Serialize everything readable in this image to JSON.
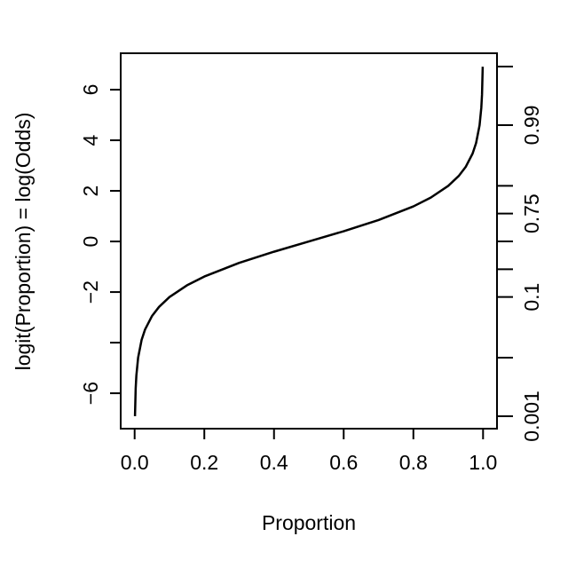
{
  "chart_data": {
    "type": "line",
    "xlabel": "Proportion",
    "ylabel": "logit(Proportion) = log(Odds)",
    "x": [
      0.001,
      0.003,
      0.005,
      0.01,
      0.02,
      0.03,
      0.05,
      0.07,
      0.1,
      0.15,
      0.2,
      0.3,
      0.4,
      0.5,
      0.6,
      0.7,
      0.8,
      0.85,
      0.9,
      0.93,
      0.95,
      0.97,
      0.98,
      0.99,
      0.995,
      0.997,
      0.999
    ],
    "series": [
      {
        "color": "#000000",
        "values": [
          -6.907,
          -5.806,
          -5.293,
          -4.595,
          -3.892,
          -3.476,
          -2.944,
          -2.587,
          -2.197,
          -1.735,
          -1.386,
          -0.847,
          -0.405,
          0,
          0.405,
          0.847,
          1.386,
          1.735,
          2.197,
          2.587,
          2.944,
          3.476,
          3.892,
          4.595,
          5.293,
          5.806,
          6.907
        ]
      }
    ],
    "xlim": [
      -0.04,
      1.04
    ],
    "xticks": [
      {
        "value": 0,
        "label": "0.0"
      },
      0.2,
      0.4,
      0.6,
      0.8,
      {
        "value": 1,
        "label": "1.0"
      }
    ],
    "ylim": [
      -7.4,
      7.44
    ],
    "yticks": [
      {
        "value": -6,
        "label": "−6"
      },
      {
        "value": -4,
        "label": null
      },
      {
        "value": -2,
        "label": "−2"
      },
      0,
      2,
      4,
      6
    ],
    "y2scale": "logit",
    "y2lim": [
      0.000611,
      0.99941
    ],
    "y2ticks": [
      {
        "value": 0.001,
        "label": "0.001"
      },
      {
        "value": 0.01,
        "label": null
      },
      {
        "value": 0.1,
        "label": "0.1"
      },
      {
        "value": 0.25,
        "label": null
      },
      {
        "value": 0.5,
        "label": null
      },
      {
        "value": 0.75,
        "label": "0.75"
      },
      {
        "value": 0.9,
        "label": null
      },
      {
        "value": 0.99,
        "label": "0.99"
      },
      {
        "value": 0.999,
        "label": null
      }
    ],
    "grid": false
  }
}
